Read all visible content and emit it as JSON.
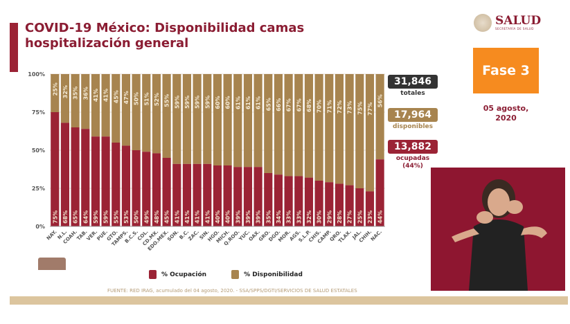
{
  "title": "COVID-19 México: Disponibilidad camas hospitalización general",
  "logo": {
    "name": "SALUD",
    "subtitle": "SECRETARÍA DE SALUD"
  },
  "phase": "Fase 3",
  "date": "05 agosto, 2020",
  "stats": {
    "total": {
      "value": "31,846",
      "label": "totales",
      "color": "#333333"
    },
    "available": {
      "value": "17,964",
      "label": "disponibles",
      "color": "#a7844f"
    },
    "occupied": {
      "value": "13,882",
      "label": "ocupadas (44%)",
      "color": "#9b2335"
    }
  },
  "footer": "FUENTE: RED IRAG, acumulado del 04  agosto, 2020. -  SSA/SPPS/DGTI/SERVICIOS DE SALUD ESTATALES",
  "chart_data": {
    "type": "bar",
    "stacked": true,
    "title": "COVID-19 México: Disponibilidad camas hospitalización general",
    "ylim": [
      0,
      100
    ],
    "yticks": [
      "0%",
      "25%",
      "50%",
      "75%",
      "100%"
    ],
    "grid": true,
    "legend_position": "bottom",
    "categories": [
      "NAY.",
      "N.L.",
      "COAH.",
      "TAB.",
      "VER.",
      "PUE.",
      "GTO.",
      "TAMPS.",
      "B.C.S.",
      "COL.",
      "CD.MX.",
      "EDO.MEX.",
      "SON.",
      "B.C.",
      "ZAC.",
      "SIN.",
      "HGO.",
      "MICH.",
      "Q.ROO.",
      "YUC.",
      "OAX.",
      "GRO.",
      "DGO.",
      "MOR.",
      "AGS.",
      "S.L.P.",
      "CHIS.",
      "CAMP.",
      "QRO.",
      "TLAX.",
      "JAL.",
      "CHIH.",
      "NAC."
    ],
    "series": [
      {
        "name": "% Ocupación",
        "color": "#9b2335",
        "values": [
          75,
          68,
          65,
          64,
          59,
          59,
          55,
          53,
          50,
          49,
          48,
          45,
          41,
          41,
          41,
          41,
          40,
          40,
          39,
          39,
          39,
          35,
          34,
          33,
          33,
          32,
          30,
          29,
          28,
          27,
          25,
          23,
          44
        ]
      },
      {
        "name": "% Disponibilidad",
        "color": "#a7844f",
        "values": [
          25,
          32,
          35,
          36,
          41,
          41,
          45,
          47,
          50,
          51,
          52,
          55,
          59,
          59,
          59,
          59,
          60,
          60,
          61,
          61,
          61,
          65,
          66,
          67,
          67,
          68,
          70,
          71,
          72,
          73,
          75,
          77,
          56
        ]
      }
    ]
  }
}
